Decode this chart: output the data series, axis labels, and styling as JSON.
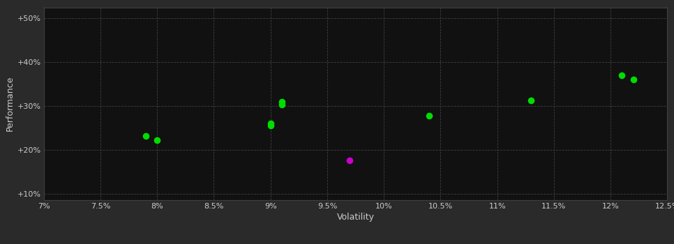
{
  "background_color": "#2a2a2a",
  "plot_bg_color": "#111111",
  "grid_color": "#404040",
  "grid_style": "--",
  "xlabel": "Volatility",
  "ylabel": "Performance",
  "xlim": [
    0.07,
    0.125
  ],
  "ylim": [
    0.085,
    0.525
  ],
  "xticks": [
    0.07,
    0.075,
    0.08,
    0.085,
    0.09,
    0.095,
    0.1,
    0.105,
    0.11,
    0.115,
    0.12,
    0.125
  ],
  "xtick_labels": [
    "7%",
    "7.5%",
    "8%",
    "8.5%",
    "9%",
    "9.5%",
    "10%",
    "10.5%",
    "11%",
    "11.5%",
    "12%",
    "12.5%"
  ],
  "yticks": [
    0.1,
    0.2,
    0.3,
    0.4,
    0.5
  ],
  "ytick_labels": [
    "+10%",
    "+20%",
    "+30%",
    "+40%",
    "+50%"
  ],
  "green_points": [
    [
      0.079,
      0.232
    ],
    [
      0.08,
      0.222
    ],
    [
      0.09,
      0.26
    ],
    [
      0.09,
      0.256
    ],
    [
      0.091,
      0.303
    ],
    [
      0.091,
      0.31
    ],
    [
      0.104,
      0.278
    ],
    [
      0.113,
      0.312
    ],
    [
      0.121,
      0.37
    ],
    [
      0.122,
      0.36
    ]
  ],
  "magenta_points": [
    [
      0.097,
      0.175
    ]
  ],
  "point_size": 35,
  "green_color": "#00dd00",
  "magenta_color": "#cc00cc",
  "tick_color": "#cccccc",
  "label_color": "#cccccc",
  "tick_fontsize": 8,
  "label_fontsize": 9
}
